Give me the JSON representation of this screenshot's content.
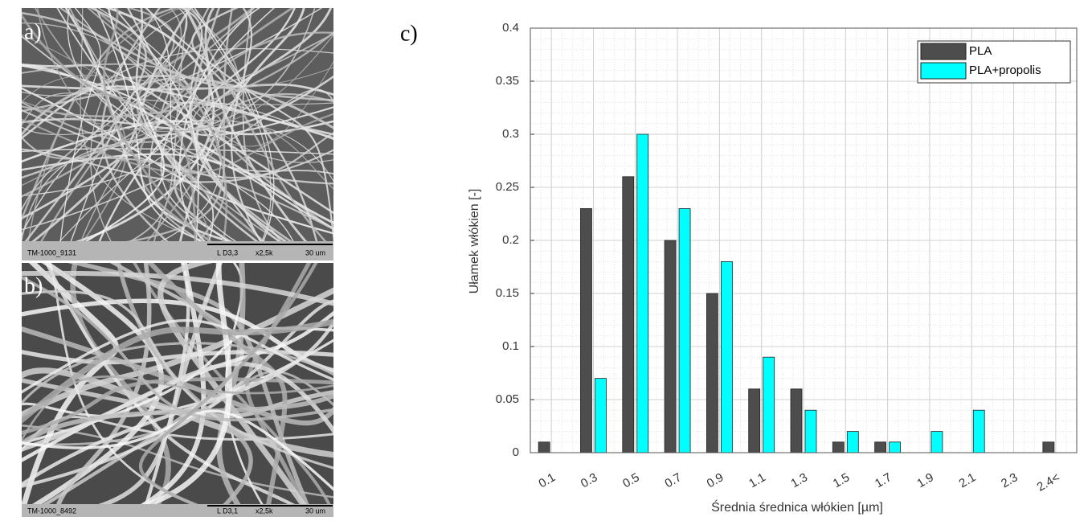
{
  "panels": [
    {
      "label": "a)",
      "caption": {
        "id": "TM-1000_9131",
        "mode": "L D3,3",
        "mag": "x2,5k",
        "scale": "30 um"
      }
    },
    {
      "label": "b)",
      "caption": {
        "id": "TM-1000_8492",
        "mode": "L D3,1",
        "mag": "x2,5k",
        "scale": "30 um"
      }
    }
  ],
  "chart_label": "c)",
  "chart_data": {
    "type": "bar",
    "x_label": "Średnia średnica włókien [µm]",
    "y_label": "Ułamek włókien [-]",
    "categories": [
      "0.1",
      "0.3",
      "0.5",
      "0.7",
      "0.9",
      "1.1",
      "1.3",
      "1.5",
      "1.7",
      "1.9",
      "2.1",
      "2.3",
      "2.4<"
    ],
    "series": [
      {
        "name": "PLA",
        "color": "#4d4d4d",
        "values": [
          0.01,
          0.23,
          0.26,
          0.2,
          0.15,
          0.06,
          0.06,
          0.01,
          0.01,
          0,
          0,
          0,
          0.01
        ]
      },
      {
        "name": "PLA+propolis",
        "color": "#00ffff",
        "values": [
          0,
          0.07,
          0.3,
          0.23,
          0.18,
          0.09,
          0.04,
          0.02,
          0.01,
          0.02,
          0.04,
          0,
          0
        ]
      }
    ],
    "ylim": [
      0,
      0.4
    ],
    "yticks": [
      0,
      0.05,
      0.1,
      0.15,
      0.2,
      0.25,
      0.3,
      0.35,
      0.4
    ],
    "grid": true,
    "legend": "upper right"
  }
}
